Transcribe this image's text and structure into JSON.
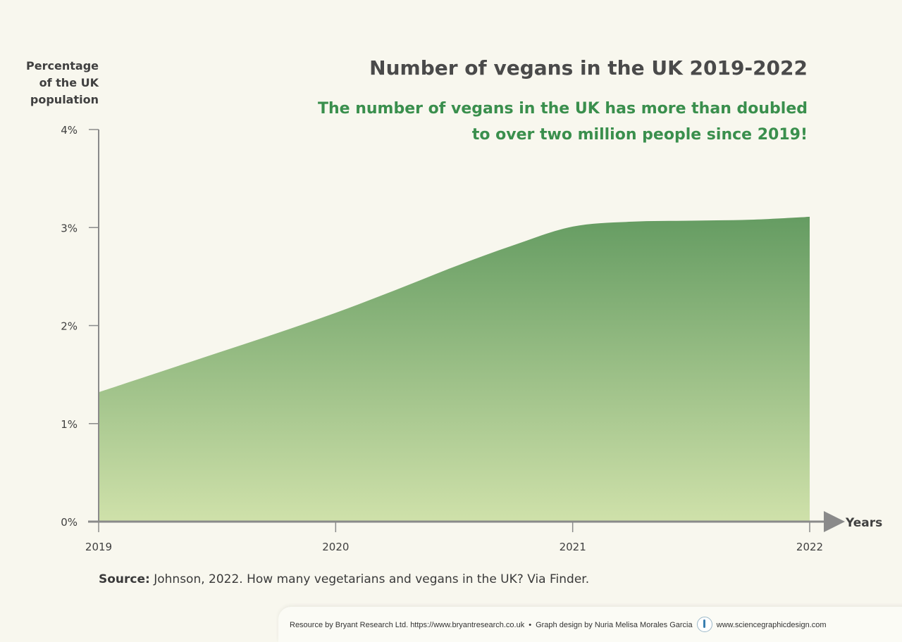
{
  "title": "Number of vegans in the UK 2019-2022",
  "subtitle": "The number of vegans in the UK has more than doubled to over two million people since 2019!",
  "source_label": "Source:",
  "source_text": " Johnson, 2022. How many vegetarians and vegans in the UK? Via Finder.",
  "footer": {
    "resource": "Resource by Bryant Research Ltd.  https://www.bryantresearch.co.uk",
    "separator": "•",
    "design": "Graph design by Nuria Melisa Morales Garcia",
    "site": "www.sciencegraphicdesign.com",
    "logo_icon": "science-graphic-design-logo-icon"
  },
  "colors": {
    "area_top": "#659c62",
    "area_bottom": "#cfe1aa",
    "axis": "#8a8a8a",
    "subtitle": "#3a8f4d",
    "background": "#f8f7ee"
  },
  "chart_data": {
    "type": "area",
    "title": "Number of vegans in the UK 2019-2022",
    "xlabel": "Years",
    "ylabel": "Percentage of the UK population",
    "x": [
      2019,
      2019.25,
      2019.5,
      2019.75,
      2020,
      2020.25,
      2020.5,
      2020.75,
      2021,
      2021.25,
      2021.5,
      2021.75,
      2022
    ],
    "y": [
      1.32,
      1.52,
      1.72,
      1.92,
      2.13,
      2.36,
      2.6,
      2.82,
      3.01,
      3.06,
      3.07,
      3.08,
      3.11
    ],
    "x_ticks": [
      "2019",
      "2020",
      "2021",
      "2022"
    ],
    "y_ticks": [
      "0%",
      "1%",
      "2%",
      "3%",
      "4%"
    ],
    "xlim": [
      2019,
      2022
    ],
    "ylim": [
      0,
      4
    ],
    "grid": false,
    "legend": "none"
  }
}
